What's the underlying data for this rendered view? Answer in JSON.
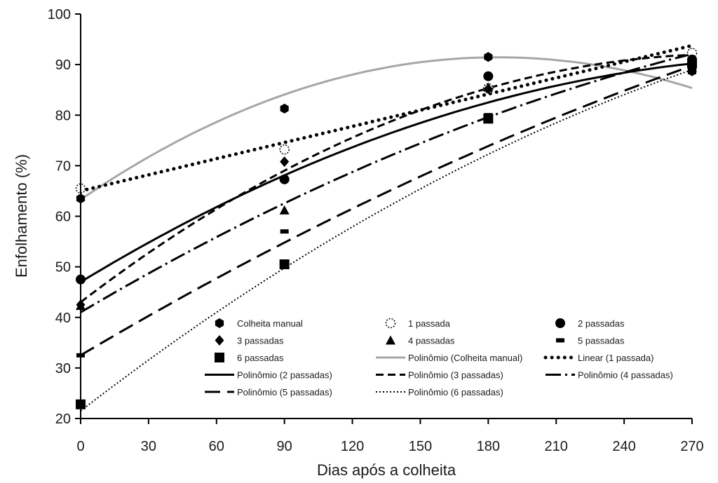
{
  "chart_data": {
    "type": "scatter",
    "title": "",
    "xlabel": "Dias após a colheita",
    "ylabel": "Enfolhamento (%)",
    "xlim": [
      0,
      270
    ],
    "ylim": [
      20,
      100
    ],
    "x_ticks": [
      0,
      30,
      60,
      90,
      120,
      150,
      180,
      210,
      240,
      270
    ],
    "y_ticks": [
      20,
      30,
      40,
      50,
      60,
      70,
      80,
      90,
      100
    ],
    "x_tick_labels": [
      "0",
      "30",
      "60",
      "90",
      "120",
      "150",
      "180",
      "210",
      "240",
      "270"
    ],
    "y_tick_labels": [
      "20",
      "30",
      "40",
      "50",
      "60",
      "70",
      "80",
      "90",
      "100"
    ],
    "grid": false,
    "legend_position": "inside-bottom",
    "series": [
      {
        "name": "Colheita manual",
        "marker": "hexagon",
        "x": [
          0,
          90,
          180,
          270
        ],
        "y": [
          63.5,
          81.3,
          91.5,
          88.7
        ]
      },
      {
        "name": "1 passada",
        "marker": "open-circle",
        "x": [
          0,
          90,
          180,
          270
        ],
        "y": [
          65.5,
          73.2,
          85.3,
          92.3
        ]
      },
      {
        "name": "2 passadas",
        "marker": "circle",
        "x": [
          0,
          90,
          180,
          270
        ],
        "y": [
          47.5,
          67.3,
          87.7,
          91.0
        ]
      },
      {
        "name": "3 passadas",
        "marker": "diamond",
        "x": [
          0,
          90,
          180,
          270
        ],
        "y": [
          42.5,
          70.8,
          85.2,
          88.7
        ]
      },
      {
        "name": "4 passadas",
        "marker": "triangle",
        "x": [
          0,
          90,
          180,
          270
        ],
        "y": [
          42.3,
          61.2,
          85.5,
          89.5
        ]
      },
      {
        "name": "5 passadas",
        "marker": "dash",
        "x": [
          0,
          90,
          180,
          270
        ],
        "y": [
          32.5,
          57.0,
          80.0,
          88.5
        ]
      },
      {
        "name": "6 passadas",
        "marker": "square",
        "x": [
          0,
          90,
          180,
          270
        ],
        "y": [
          22.8,
          50.5,
          79.3,
          90.2
        ]
      }
    ],
    "trendlines": [
      {
        "name": "Polinômio (Colheita manual)",
        "kind": "poly2",
        "coef": [
          63.3,
          0.3054,
          -0.0008286
        ],
        "style": "solid-gray"
      },
      {
        "name": "Linear (1 passada)",
        "kind": "linear",
        "coef": [
          65.0,
          0.1065
        ],
        "style": "round-dot"
      },
      {
        "name": "Polinômio (2 passadas)",
        "kind": "poly2",
        "coef": [
          47.0,
          0.2717,
          -0.0004136
        ],
        "style": "solid"
      },
      {
        "name": "Polinômio (3 passadas)",
        "kind": "poly2",
        "coef": [
          43.0,
          0.3432,
          -0.0006
        ],
        "style": "dash"
      },
      {
        "name": "Polinômio (4 passadas)",
        "kind": "poly2",
        "coef": [
          41.0,
          0.2648,
          -0.0002798
        ],
        "style": "long-dash-dot"
      },
      {
        "name": "Polinômio (5 passadas)",
        "kind": "poly2",
        "coef": [
          32.5,
          0.2654,
          -0.0001975
        ],
        "style": "long-dash"
      },
      {
        "name": "Polinômio (6 passadas)",
        "kind": "poly2",
        "coef": [
          21.5,
          0.3462,
          -0.0003567
        ],
        "style": "fine-dot"
      }
    ]
  }
}
